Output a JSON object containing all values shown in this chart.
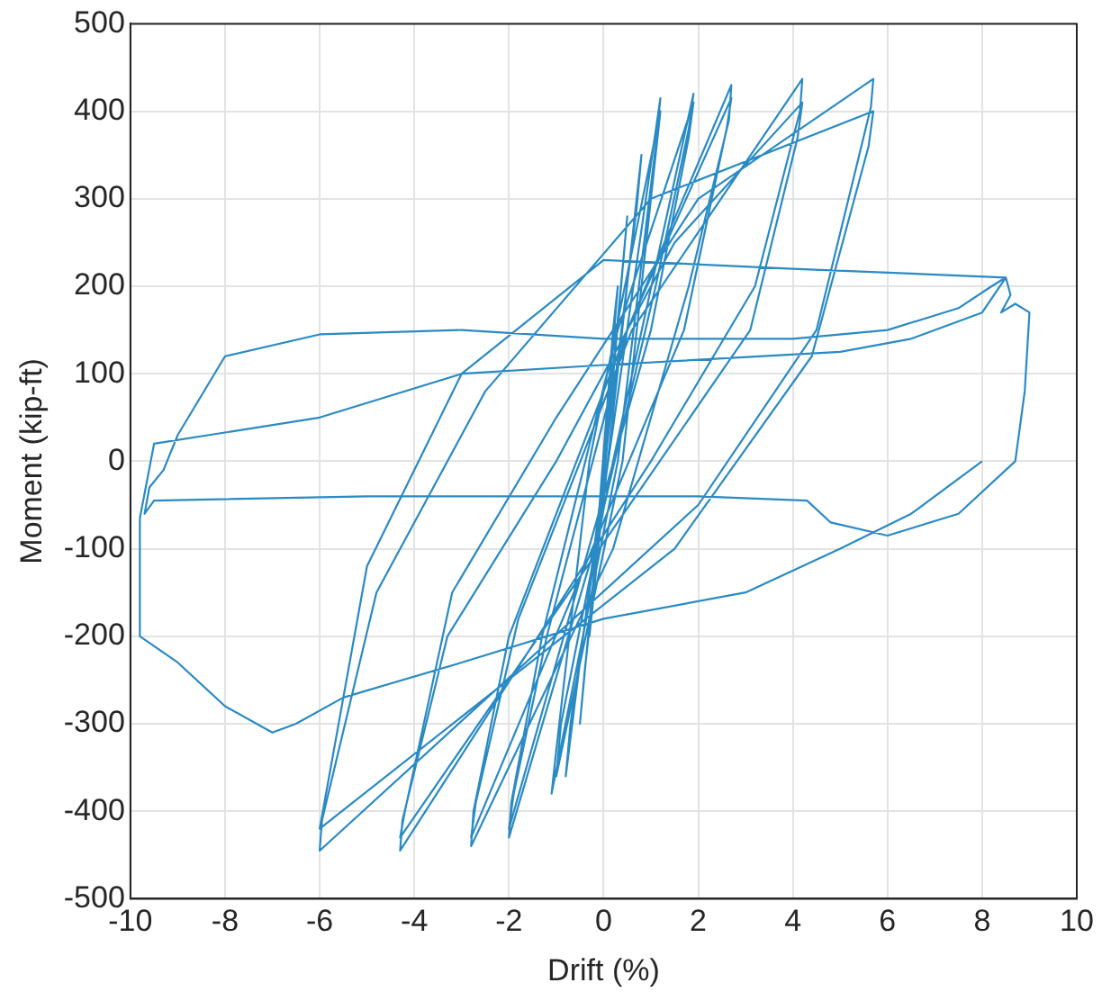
{
  "chart_data": {
    "type": "line",
    "xlabel": "Drift (%)",
    "ylabel": "Moment (kip-ft)",
    "xlim": [
      -10,
      10
    ],
    "xticks": [
      -10,
      -8,
      -6,
      -4,
      -2,
      0,
      2,
      4,
      6,
      8,
      10
    ],
    "ylim": [
      -500,
      500
    ],
    "yticks": [
      -500,
      -400,
      -300,
      -200,
      -100,
      0,
      100,
      200,
      300,
      400,
      500
    ],
    "grid": true,
    "legend": false,
    "marker": "none",
    "line_style": "solid",
    "series": [
      {
        "color": "#2a8ac4",
        "x": [
          0,
          0.3,
          0.2,
          -0.3,
          -0.2,
          0.5,
          0.4,
          -0.5,
          -0.4,
          0.8,
          0.7,
          -0.8,
          -0.7,
          1.2,
          1.1,
          0.3,
          -1.1,
          -1.0,
          -0.3,
          1.2,
          1.1,
          0.4,
          -1.0,
          -0.9,
          0.2,
          1.9,
          1.8,
          1.1,
          -0.2,
          -2.0,
          -1.95,
          -1.3,
          0.3,
          1.9,
          1.8,
          1.0,
          -2.0,
          -1.9,
          -1.2,
          0.5,
          2.7,
          2.65,
          1.8,
          0.2,
          -2.8,
          -2.75,
          -2.0,
          0.5,
          2.7,
          2.6,
          1.7,
          -2.8,
          -2.7,
          -1.8,
          0.6,
          4.2,
          4.15,
          3.2,
          1.0,
          -4.3,
          -4.25,
          -3.3,
          -1.0,
          1.5,
          4.2,
          4.1,
          3.1,
          -4.3,
          -4.2,
          -3.2,
          -1.0,
          2.0,
          5.7,
          5.65,
          4.5,
          2.0,
          -6.0,
          -5.95,
          -4.8,
          -2.5,
          1.0,
          5.7,
          5.6,
          4.4,
          1.5,
          -6.0,
          -5.9,
          -5.0,
          -3.0,
          0,
          4.0,
          8.5,
          8.6,
          8.4,
          8.7,
          9.0,
          8.9,
          8.7,
          7.5,
          6.0,
          4.8,
          4.3,
          2.0,
          0,
          -5.0,
          -9.5,
          -9.7,
          -9.6,
          -9.3,
          -9.0,
          -8.0,
          -6.0,
          -3.0,
          0,
          4.0,
          6.0,
          7.5,
          8.2,
          8.5,
          8.0,
          6.5,
          5.0,
          0,
          -3.0,
          -6.0,
          -9.5,
          -9.8,
          -9.8,
          -9.0,
          -8.0,
          -7.0,
          -6.5,
          -5.5,
          -3.0,
          0,
          3.0,
          5.0,
          6.5,
          8.0
        ],
        "values": [
          0,
          200,
          150,
          -200,
          -150,
          280,
          220,
          -300,
          -240,
          350,
          290,
          -360,
          -300,
          415,
          360,
          0,
          -380,
          -330,
          0,
          400,
          350,
          0,
          -360,
          -300,
          0,
          420,
          380,
          200,
          -100,
          -430,
          -390,
          -200,
          150,
          410,
          370,
          150,
          -420,
          -380,
          -200,
          150,
          430,
          390,
          200,
          -100,
          -440,
          -400,
          -200,
          150,
          415,
          380,
          150,
          -430,
          -390,
          -180,
          150,
          437,
          400,
          200,
          0,
          -445,
          -410,
          -200,
          0,
          250,
          410,
          370,
          150,
          -430,
          -400,
          -150,
          50,
          300,
          437,
          405,
          150,
          -50,
          -445,
          -410,
          -150,
          80,
          300,
          400,
          360,
          120,
          -100,
          -420,
          -390,
          -120,
          100,
          230,
          220,
          210,
          190,
          170,
          180,
          170,
          80,
          0,
          -60,
          -85,
          -70,
          -45,
          -40,
          -40,
          -40,
          -45,
          -60,
          -30,
          -10,
          30,
          120,
          145,
          150,
          140,
          140,
          150,
          175,
          200,
          210,
          170,
          140,
          125,
          110,
          100,
          50,
          20,
          -65,
          -200,
          -230,
          -280,
          -310,
          -300,
          -270,
          -230,
          -180,
          -150,
          -100,
          -60,
          0
        ]
      }
    ]
  }
}
